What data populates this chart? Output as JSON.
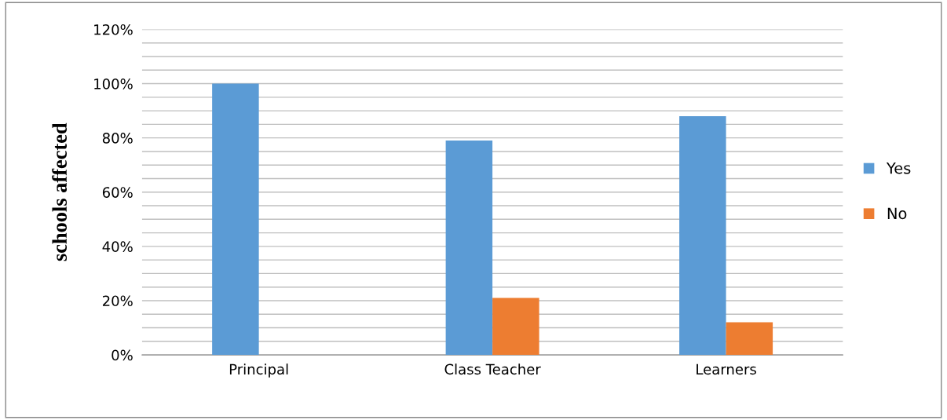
{
  "chart_data": {
    "type": "bar",
    "ylabel": "schools affected",
    "categories": [
      "Principal",
      "Class Teacher",
      "Learners"
    ],
    "series": [
      {
        "name": "Yes",
        "color": "#5b9bd5",
        "values": [
          100,
          79,
          88
        ]
      },
      {
        "name": "No",
        "color": "#ed7d31",
        "values": [
          0,
          21,
          12
        ]
      }
    ],
    "ylim": [
      0,
      120
    ],
    "yticks": [
      {
        "value": 0,
        "label": "0%"
      },
      {
        "value": 5,
        "label": null
      },
      {
        "value": 10,
        "label": null
      },
      {
        "value": 15,
        "label": null
      },
      {
        "value": 20,
        "label": "20%"
      },
      {
        "value": 25,
        "label": null
      },
      {
        "value": 30,
        "label": null
      },
      {
        "value": 35,
        "label": null
      },
      {
        "value": 40,
        "label": "40%"
      },
      {
        "value": 45,
        "label": null
      },
      {
        "value": 50,
        "label": null
      },
      {
        "value": 55,
        "label": null
      },
      {
        "value": 60,
        "label": "60%"
      },
      {
        "value": 65,
        "label": null
      },
      {
        "value": 70,
        "label": null
      },
      {
        "value": 75,
        "label": null
      },
      {
        "value": 80,
        "label": "80%"
      },
      {
        "value": 85,
        "label": null
      },
      {
        "value": 90,
        "label": null
      },
      {
        "value": 95,
        "label": null
      },
      {
        "value": 100,
        "label": "100%"
      },
      {
        "value": 105,
        "label": null
      },
      {
        "value": 110,
        "label": null
      },
      {
        "value": 115,
        "label": null
      },
      {
        "value": 120,
        "label": "120%"
      }
    ],
    "grid": "y",
    "legend": "right"
  }
}
